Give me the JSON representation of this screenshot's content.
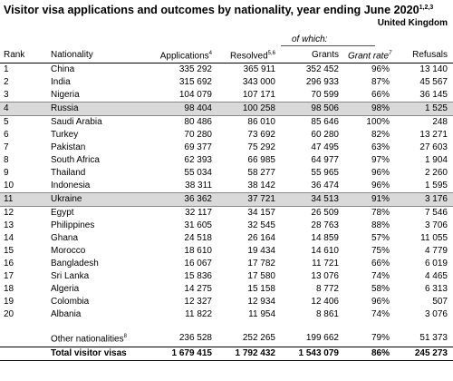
{
  "title": "Visitor visa applications and outcomes by nationality, year ending June 2020",
  "title_superscript": "1,2,3",
  "region": "United Kingdom",
  "of_which": "of which:",
  "headers": {
    "rank": "Rank",
    "nationality": "Nationality",
    "applications": "Applications",
    "applications_sup": "4",
    "resolved": "Resolved",
    "resolved_sup": "5,6",
    "grants": "Grants",
    "grant_rate": "Grant rate",
    "grant_rate_sup": "7",
    "refusals": "Refusals"
  },
  "rows": [
    {
      "rank": "1",
      "nationality": "China",
      "applications": "335 292",
      "resolved": "365 911",
      "grants": "352 452",
      "rate": "96%",
      "refusals": "13 140"
    },
    {
      "rank": "2",
      "nationality": "India",
      "applications": "315 692",
      "resolved": "343 000",
      "grants": "296 933",
      "rate": "87%",
      "refusals": "45 567"
    },
    {
      "rank": "3",
      "nationality": "Nigeria",
      "applications": "104 079",
      "resolved": "107 171",
      "grants": "70 599",
      "rate": "66%",
      "refusals": "36 145"
    },
    {
      "rank": "4",
      "nationality": "Russia",
      "applications": "98 404",
      "resolved": "100 258",
      "grants": "98 506",
      "rate": "98%",
      "refusals": "1 525",
      "highlight": true
    },
    {
      "rank": "5",
      "nationality": "Saudi Arabia",
      "applications": "80 486",
      "resolved": "86 010",
      "grants": "85 646",
      "rate": "100%",
      "refusals": "248"
    },
    {
      "rank": "6",
      "nationality": "Turkey",
      "applications": "70 280",
      "resolved": "73 692",
      "grants": "60 280",
      "rate": "82%",
      "refusals": "13 271"
    },
    {
      "rank": "7",
      "nationality": "Pakistan",
      "applications": "69 377",
      "resolved": "75 292",
      "grants": "47 495",
      "rate": "63%",
      "refusals": "27 603"
    },
    {
      "rank": "8",
      "nationality": "South Africa",
      "applications": "62 393",
      "resolved": "66 985",
      "grants": "64 977",
      "rate": "97%",
      "refusals": "1 904"
    },
    {
      "rank": "9",
      "nationality": "Thailand",
      "applications": "55 034",
      "resolved": "58 277",
      "grants": "55 965",
      "rate": "96%",
      "refusals": "2 260"
    },
    {
      "rank": "10",
      "nationality": "Indonesia",
      "applications": "38 311",
      "resolved": "38 142",
      "grants": "36 474",
      "rate": "96%",
      "refusals": "1 595"
    },
    {
      "rank": "11",
      "nationality": "Ukraine",
      "applications": "36 362",
      "resolved": "37 721",
      "grants": "34 513",
      "rate": "91%",
      "refusals": "3 176",
      "highlight": true
    },
    {
      "rank": "12",
      "nationality": "Egypt",
      "applications": "32 117",
      "resolved": "34 157",
      "grants": "26 509",
      "rate": "78%",
      "refusals": "7 546"
    },
    {
      "rank": "13",
      "nationality": "Philippines",
      "applications": "31 605",
      "resolved": "32 545",
      "grants": "28 763",
      "rate": "88%",
      "refusals": "3 706"
    },
    {
      "rank": "14",
      "nationality": "Ghana",
      "applications": "24 518",
      "resolved": "26 164",
      "grants": "14 859",
      "rate": "57%",
      "refusals": "11 055"
    },
    {
      "rank": "15",
      "nationality": "Morocco",
      "applications": "18 610",
      "resolved": "19 434",
      "grants": "14 610",
      "rate": "75%",
      "refusals": "4 779"
    },
    {
      "rank": "16",
      "nationality": "Bangladesh",
      "applications": "16 067",
      "resolved": "17 782",
      "grants": "11 721",
      "rate": "66%",
      "refusals": "6 019"
    },
    {
      "rank": "17",
      "nationality": "Sri Lanka",
      "applications": "15 836",
      "resolved": "17 580",
      "grants": "13 076",
      "rate": "74%",
      "refusals": "4 465"
    },
    {
      "rank": "18",
      "nationality": "Algeria",
      "applications": "14 275",
      "resolved": "15 158",
      "grants": "8 772",
      "rate": "58%",
      "refusals": "6 313"
    },
    {
      "rank": "19",
      "nationality": "Colombia",
      "applications": "12 327",
      "resolved": "12 934",
      "grants": "12 406",
      "rate": "96%",
      "refusals": "507"
    },
    {
      "rank": "20",
      "nationality": "Albania",
      "applications": "11 822",
      "resolved": "11 954",
      "grants": "8 861",
      "rate": "74%",
      "refusals": "3 076"
    }
  ],
  "other": {
    "label": "Other nationalities",
    "label_sup": "8",
    "applications": "236 528",
    "resolved": "252 265",
    "grants": "199 662",
    "rate": "79%",
    "refusals": "51 373"
  },
  "total": {
    "label": "Total visitor visas",
    "applications": "1 679 415",
    "resolved": "1 792 432",
    "grants": "1 543 079",
    "rate": "86%",
    "refusals": "245 273"
  }
}
